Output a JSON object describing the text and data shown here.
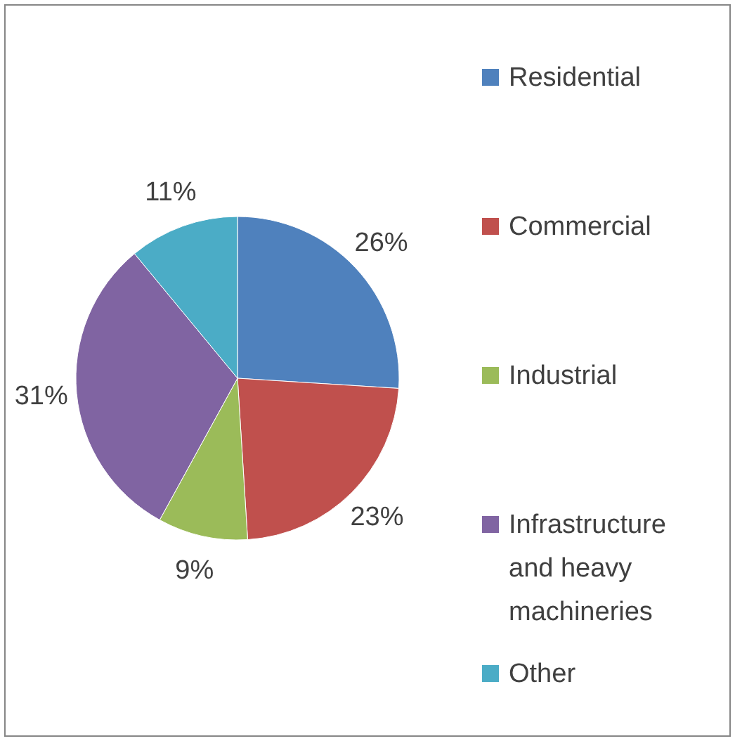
{
  "chart_data": {
    "type": "pie",
    "categories": [
      "Residential",
      "Commercial",
      "Industrial",
      "Infrastructure and heavy machineries",
      "Other"
    ],
    "values": [
      26,
      23,
      9,
      31,
      11
    ],
    "colors": [
      "#4f81bd",
      "#c0504d",
      "#9bbb59",
      "#8064a2",
      "#4bacc6"
    ],
    "value_labels": [
      "26%",
      "23%",
      "9%",
      "31%",
      "11%"
    ],
    "legend": "right"
  }
}
